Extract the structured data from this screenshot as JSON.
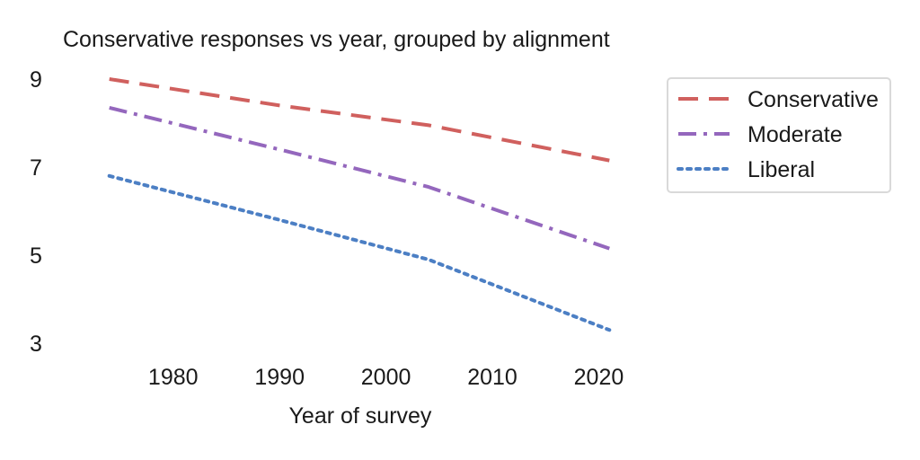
{
  "chart_data": {
    "type": "line",
    "title": "Conservative responses vs year, grouped by alignment",
    "xlabel": "Year of survey",
    "ylabel": "",
    "xlim": [
      1972,
      2023
    ],
    "ylim": [
      3,
      9
    ],
    "xticks": [
      1980,
      1990,
      2000,
      2010,
      2020
    ],
    "yticks": [
      3,
      5,
      7,
      9
    ],
    "grid": false,
    "legend_position": "top-right",
    "x": [
      1974,
      1990,
      2004,
      2021
    ],
    "series": [
      {
        "name": "Conservative",
        "values": [
          9.0,
          8.4,
          7.95,
          7.15
        ],
        "x": [
          1974,
          1990,
          2004,
          2021
        ],
        "color": "#d0605e",
        "style": "dashed"
      },
      {
        "name": "Moderate",
        "values": [
          8.35,
          7.4,
          6.55,
          5.15
        ],
        "x": [
          1974,
          1990,
          2004,
          2021
        ],
        "color": "#9467bd",
        "style": "dashdot"
      },
      {
        "name": "Liberal",
        "values": [
          6.8,
          5.8,
          4.9,
          3.3
        ],
        "x": [
          1974,
          1990,
          2004,
          2021
        ],
        "color": "#4c7fc4",
        "style": "dotted"
      }
    ]
  }
}
